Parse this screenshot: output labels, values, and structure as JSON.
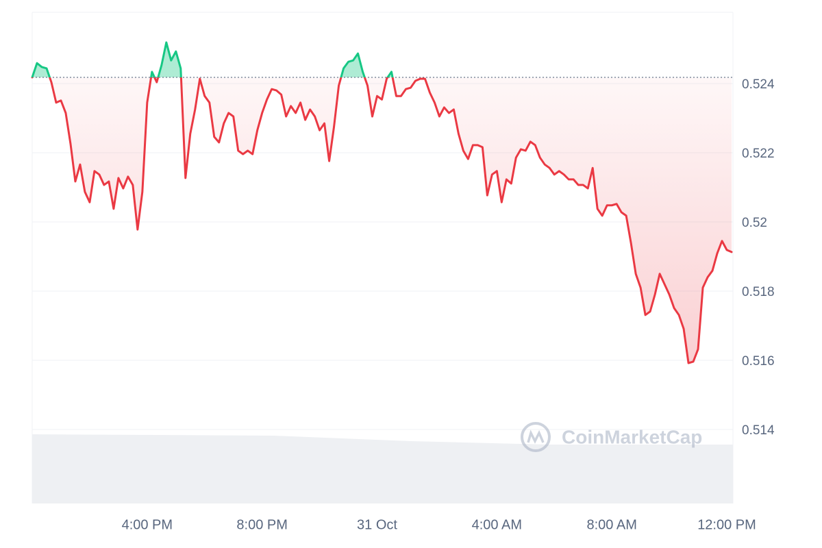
{
  "chart_data": {
    "type": "line",
    "watermark": "CoinMarketCap",
    "categories": [
      null,
      null,
      null,
      null,
      null,
      null,
      null,
      null,
      null,
      null,
      null,
      null,
      null,
      null,
      null,
      null,
      null,
      null,
      null,
      null,
      null,
      null,
      null,
      null,
      "4:00 PM",
      null,
      null,
      null,
      null,
      null,
      null,
      null,
      null,
      null,
      null,
      null,
      null,
      null,
      null,
      null,
      null,
      null,
      null,
      null,
      null,
      null,
      null,
      null,
      "8:00 PM",
      null,
      null,
      null,
      null,
      null,
      null,
      null,
      null,
      null,
      null,
      null,
      null,
      null,
      null,
      null,
      null,
      null,
      null,
      null,
      null,
      null,
      null,
      null,
      "31 Oct",
      null,
      null,
      null,
      null,
      null,
      null,
      null,
      null,
      null,
      null,
      null,
      null,
      null,
      null,
      null,
      null,
      null,
      null,
      null,
      null,
      null,
      null,
      null,
      null,
      "4:00 AM",
      null,
      null,
      null,
      null,
      null,
      null,
      null,
      null,
      null,
      null,
      null,
      null,
      null,
      null,
      null,
      null,
      null,
      null,
      null,
      null,
      null,
      null,
      null,
      "8:00 AM",
      null,
      null,
      null,
      null,
      null,
      null,
      null,
      null,
      null,
      null,
      null,
      null,
      null,
      null,
      null,
      null,
      null,
      null,
      null,
      null,
      null,
      null,
      null,
      "12:00 PM",
      null
    ],
    "values": [
      0.52418,
      0.52459,
      0.52448,
      0.52444,
      0.52404,
      0.52345,
      0.52351,
      0.52315,
      0.52226,
      0.52117,
      0.52166,
      0.52087,
      0.52057,
      0.52147,
      0.52137,
      0.52107,
      0.52117,
      0.52038,
      0.52127,
      0.52097,
      0.52131,
      0.52107,
      0.51978,
      0.52087,
      0.52345,
      0.52434,
      0.52404,
      0.52453,
      0.52519,
      0.52467,
      0.52493,
      0.52444,
      0.52127,
      0.52255,
      0.52325,
      0.52414,
      0.52364,
      0.52345,
      0.52246,
      0.5223,
      0.52285,
      0.52315,
      0.52305,
      0.52206,
      0.52196,
      0.52206,
      0.52196,
      0.52265,
      0.52315,
      0.52354,
      0.52384,
      0.5238,
      0.52368,
      0.52305,
      0.52335,
      0.52315,
      0.52345,
      0.52295,
      0.52325,
      0.52305,
      0.52265,
      0.52285,
      0.52176,
      0.52275,
      0.52394,
      0.52444,
      0.52463,
      0.52467,
      0.52487,
      0.52434,
      0.52394,
      0.52305,
      0.52364,
      0.52354,
      0.52414,
      0.52434,
      0.52364,
      0.52364,
      0.52384,
      0.52388,
      0.52408,
      0.52414,
      0.52414,
      0.52374,
      0.52345,
      0.52305,
      0.52331,
      0.52315,
      0.52325,
      0.52255,
      0.52206,
      0.52182,
      0.52222,
      0.52222,
      0.52216,
      0.52077,
      0.52137,
      0.52147,
      0.52057,
      0.52123,
      0.52111,
      0.52186,
      0.5221,
      0.52206,
      0.52232,
      0.52222,
      0.52186,
      0.52166,
      0.52156,
      0.52137,
      0.52147,
      0.52137,
      0.52123,
      0.52123,
      0.52107,
      0.52107,
      0.52097,
      0.52156,
      0.52038,
      0.52018,
      0.52048,
      0.52048,
      0.52052,
      0.52028,
      0.52018,
      0.51939,
      0.5185,
      0.5181,
      0.51731,
      0.51741,
      0.5179,
      0.5185,
      0.5182,
      0.5179,
      0.51751,
      0.51731,
      0.51691,
      0.51592,
      0.51596,
      0.51632,
      0.5181,
      0.5184,
      0.51859,
      0.51909,
      0.51945,
      0.51919,
      0.51913
    ],
    "baseline": 0.52418,
    "up_color": "#16c784",
    "down_color": "#ea3943",
    "ylim": [
      0.51186,
      0.52606
    ],
    "yticks": [
      0.514,
      0.516,
      0.518,
      0.52,
      0.522,
      0.524
    ],
    "grid": true
  }
}
